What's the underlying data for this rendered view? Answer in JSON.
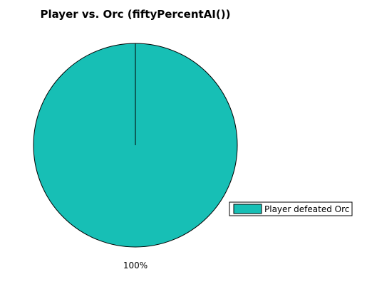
{
  "chart_data": {
    "type": "pie",
    "title": "Player vs. Orc (fiftyPercentAI())",
    "categories": [
      "Player defeated Orc"
    ],
    "values": [
      100
    ],
    "percent_labels": [
      "100%"
    ],
    "colors": [
      "#17bfb5"
    ],
    "legend": {
      "placement": "right",
      "entries": [
        "Player defeated Orc"
      ]
    },
    "grid": false
  }
}
